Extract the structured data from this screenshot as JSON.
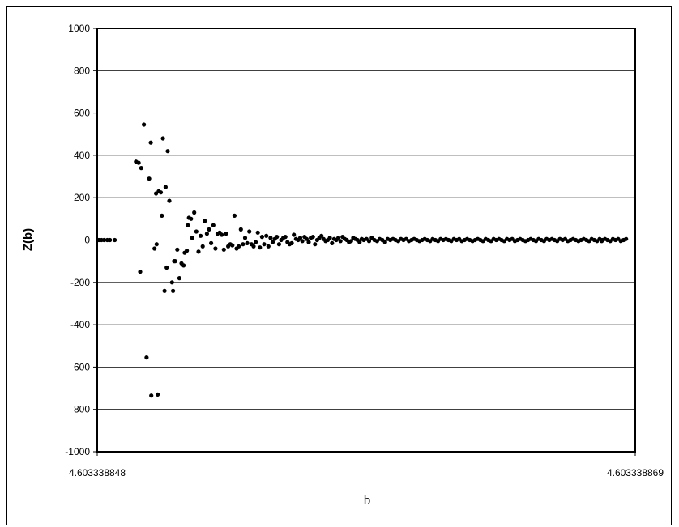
{
  "chart_data": {
    "type": "scatter",
    "title": "",
    "xlabel": "b",
    "ylabel": "Z(b)",
    "xlim_labels": [
      "4.603338848",
      "4.603338869"
    ],
    "ylim": [
      -1000,
      1000
    ],
    "y_ticks": [
      1000,
      800,
      600,
      400,
      200,
      0,
      -200,
      -400,
      -600,
      -800,
      -1000
    ],
    "y_tick_labels": [
      "1000",
      "800",
      "600",
      "400",
      "200",
      "0",
      "-200",
      "-400",
      "-600",
      "-800",
      "-1000"
    ],
    "x_tick_labels": [
      "4.603338848",
      "4.603338869"
    ],
    "grid": true,
    "legend": "none",
    "marker_color": "#000000",
    "series": [
      {
        "x": [
          0.0,
          0.005,
          0.01,
          0.016,
          0.021,
          0.03,
          0.07,
          0.075,
          0.08,
          0.085,
          0.095,
          0.098,
          0.105,
          0.109,
          0.113,
          0.117,
          0.119,
          0.124,
          0.128,
          0.13,
          0.133,
          0.138,
          0.14,
          0.144,
          0.148,
          0.152,
          0.156,
          0.16,
          0.162,
          0.166,
          0.168,
          0.17,
          0.174,
          0.176,
          0.18,
          0.184,
          0.188,
          0.192,
          0.196,
          0.2,
          0.204,
          0.208,
          0.212,
          0.216,
          0.22,
          0.224,
          0.228,
          0.232,
          0.236,
          0.24,
          0.244,
          0.248,
          0.252,
          0.256,
          0.26,
          0.264,
          0.268,
          0.272,
          0.276,
          0.28,
          0.284,
          0.288,
          0.292,
          0.296,
          0.3,
          0.304,
          0.308,
          0.312,
          0.316,
          0.32,
          0.324,
          0.328,
          0.332,
          0.336,
          0.34,
          0.344,
          0.348,
          0.352,
          0.356,
          0.36,
          0.364,
          0.368,
          0.372,
          0.376,
          0.38,
          0.384,
          0.388,
          0.392,
          0.396,
          0.4,
          0.404,
          0.408,
          0.412,
          0.416,
          0.42,
          0.424,
          0.428,
          0.432,
          0.436,
          0.44,
          0.444,
          0.448,
          0.452,
          0.456,
          0.46,
          0.464,
          0.468,
          0.472,
          0.476,
          0.48,
          0.484,
          0.488,
          0.492,
          0.496,
          0.5,
          0.505,
          0.51,
          0.515,
          0.52,
          0.525,
          0.53,
          0.535,
          0.54,
          0.545,
          0.55,
          0.555,
          0.56,
          0.565,
          0.57,
          0.575,
          0.58,
          0.585,
          0.59,
          0.595,
          0.6,
          0.605,
          0.61,
          0.615,
          0.62,
          0.625,
          0.63,
          0.635,
          0.64,
          0.645,
          0.65,
          0.655,
          0.66,
          0.665,
          0.67,
          0.675,
          0.68,
          0.685,
          0.69,
          0.695,
          0.7,
          0.705,
          0.71,
          0.715,
          0.72,
          0.725,
          0.73,
          0.735,
          0.74,
          0.745,
          0.75,
          0.755,
          0.76,
          0.765,
          0.77,
          0.775,
          0.78,
          0.785,
          0.79,
          0.795,
          0.8,
          0.805,
          0.81,
          0.815,
          0.82,
          0.825,
          0.83,
          0.835,
          0.84,
          0.845,
          0.85,
          0.855,
          0.86,
          0.865,
          0.87,
          0.875,
          0.88,
          0.885,
          0.89,
          0.895,
          0.9,
          0.905,
          0.91,
          0.915,
          0.92,
          0.925,
          0.93,
          0.935,
          0.94,
          0.945,
          0.95,
          0.955,
          0.96,
          0.965,
          0.97,
          0.975,
          0.98,
          0.985,
          0.99,
          0.995,
          0.949,
          0.078,
          0.09,
          0.099,
          0.108,
          0.111,
          0.121,
          0.126,
          0.142
        ],
        "y": [
          0,
          0,
          0,
          0,
          0,
          0,
          370,
          365,
          340,
          545,
          290,
          460,
          -40,
          -20,
          230,
          225,
          115,
          -240,
          -130,
          420,
          185,
          -200,
          -240,
          -100,
          -45,
          -180,
          -110,
          -120,
          -60,
          -50,
          70,
          105,
          100,
          10,
          130,
          40,
          -55,
          20,
          -30,
          90,
          30,
          50,
          -15,
          70,
          -40,
          30,
          35,
          25,
          -45,
          30,
          -30,
          -20,
          -25,
          115,
          -40,
          -30,
          50,
          -20,
          10,
          -15,
          40,
          -20,
          -30,
          -10,
          35,
          -35,
          15,
          -20,
          20,
          -30,
          10,
          -10,
          5,
          15,
          -20,
          0,
          10,
          15,
          -10,
          -20,
          -15,
          25,
          5,
          0,
          10,
          -5,
          15,
          5,
          -10,
          10,
          15,
          -20,
          0,
          10,
          20,
          5,
          -5,
          0,
          10,
          -15,
          5,
          0,
          10,
          -5,
          15,
          5,
          0,
          -10,
          -5,
          10,
          5,
          0,
          -10,
          5,
          0,
          5,
          -5,
          10,
          0,
          -5,
          5,
          0,
          -10,
          5,
          0,
          5,
          0,
          -5,
          5,
          0,
          5,
          -5,
          0,
          5,
          0,
          -5,
          0,
          5,
          0,
          -5,
          5,
          0,
          -5,
          5,
          0,
          5,
          0,
          -5,
          5,
          0,
          5,
          -5,
          0,
          5,
          0,
          -5,
          0,
          5,
          0,
          -5,
          5,
          0,
          -5,
          5,
          0,
          5,
          0,
          -5,
          5,
          0,
          5,
          -5,
          0,
          5,
          0,
          -5,
          0,
          5,
          0,
          -5,
          5,
          0,
          -5,
          5,
          0,
          5,
          0,
          -5,
          5,
          0,
          5,
          -5,
          0,
          5,
          0,
          -5,
          0,
          5,
          0,
          -5,
          5,
          0,
          -5,
          5,
          0,
          5,
          0,
          -5,
          5,
          0,
          5,
          -5,
          0,
          5,
          -5,
          -150,
          -555,
          -735,
          220,
          -730,
          480,
          250,
          -100
        ]
      }
    ]
  }
}
